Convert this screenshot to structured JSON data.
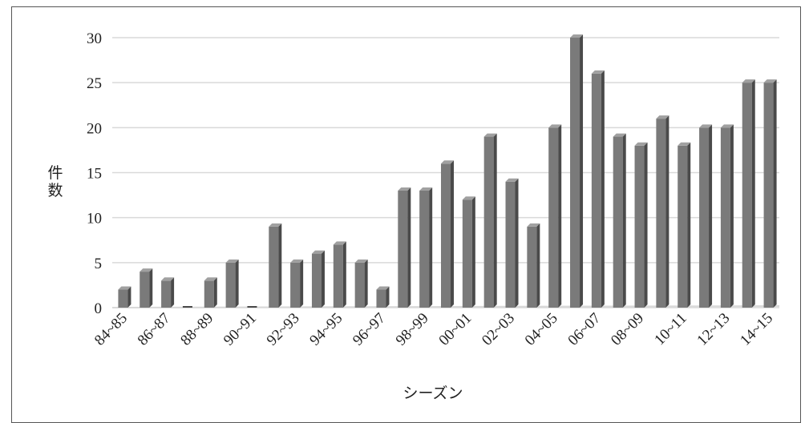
{
  "chart_data": {
    "type": "bar",
    "title": "",
    "xlabel": "シーズン",
    "ylabel": "件数",
    "ylim": [
      0,
      30
    ],
    "yticks": [
      0,
      5,
      10,
      15,
      20,
      25,
      30
    ],
    "grid": true,
    "legend": "none",
    "categories": [
      "84~85",
      "85~86",
      "86~87",
      "87~88",
      "88~89",
      "89~90",
      "90~91",
      "91~92",
      "92~93",
      "93~94",
      "94~95",
      "95~96",
      "96~97",
      "97~98",
      "98~99",
      "99~00",
      "00~01",
      "01~02",
      "02~03",
      "03~04",
      "04~05",
      "05~06",
      "06~07",
      "07~08",
      "08~09",
      "09~10",
      "10~11",
      "11~12",
      "12~13",
      "13~14",
      "14~15"
    ],
    "x_tick_labels": [
      "84~85",
      "86~87",
      "88~89",
      "90~91",
      "92~93",
      "94~95",
      "96~97",
      "98~99",
      "00~01",
      "02~03",
      "04~05",
      "06~07",
      "08~09",
      "10~11",
      "12~13",
      "14~15"
    ],
    "values": [
      2,
      4,
      3,
      0,
      3,
      5,
      0,
      9,
      5,
      6,
      7,
      5,
      2,
      13,
      13,
      16,
      12,
      19,
      14,
      9,
      20,
      30,
      26,
      19,
      18,
      21,
      18,
      20,
      20,
      25,
      25
    ],
    "colors": {
      "bar_front": "#7a7a7a",
      "bar_side": "#4a4a4a",
      "bar_top": "#a0a0a0",
      "grid": "#d9d9d9"
    }
  }
}
